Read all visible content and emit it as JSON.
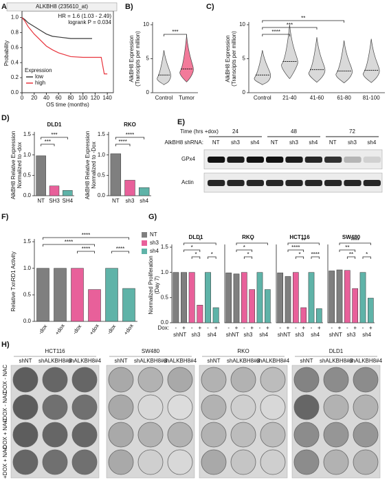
{
  "panel_labels": [
    "A)",
    "B)",
    "C)",
    "D)",
    "E)",
    "F)",
    "G)",
    "H)"
  ],
  "chart_data": [
    {
      "type": "line",
      "title": "ALKBH8 (235610_at)",
      "annotations": [
        "HR = 1.6 (1.03 - 2.49)",
        "logrank P = 0.034"
      ],
      "xlabel": "OS time (months)",
      "ylabel": [
        "Probability"
      ],
      "xlim": [
        0,
        150
      ],
      "xticks": [
        0,
        20,
        40,
        60,
        80,
        100,
        120,
        140
      ],
      "ylim": [
        0,
        1.05
      ],
      "yticks": [
        {
          "value": 0,
          "label": "0.0"
        },
        {
          "value": 0.2,
          "label": "0.2"
        },
        {
          "value": 0.4,
          "label": "0.4"
        },
        {
          "value": 0.6,
          "label": "0.6"
        },
        {
          "value": 0.8,
          "label": "0.8"
        },
        {
          "value": 1,
          "label": "1.0"
        }
      ],
      "legend_title": "Expression",
      "legend": "lower left",
      "series": [
        {
          "name": "low",
          "color": "#3a3a3a",
          "x": [
            0,
            5,
            10,
            20,
            30,
            40,
            50,
            60,
            80,
            100,
            115
          ],
          "values": [
            1,
            0.97,
            0.93,
            0.88,
            0.83,
            0.78,
            0.75,
            0.74,
            0.72,
            0.72,
            0.72
          ]
        },
        {
          "name": "high",
          "color": "#e8333c",
          "x": [
            0,
            5,
            10,
            20,
            30,
            40,
            50,
            60,
            80,
            100,
            130,
            135,
            140
          ],
          "values": [
            1,
            0.95,
            0.88,
            0.78,
            0.7,
            0.62,
            0.57,
            0.53,
            0.48,
            0.47,
            0.47,
            0.25,
            0.25
          ]
        }
      ]
    },
    {
      "type": "violin",
      "ylabel": [
        "AlkBH8 Expression",
        "(Transcipts per million)"
      ],
      "categories": [
        "Control",
        "Tumor"
      ],
      "values": [
        2.6,
        3.5
      ],
      "colors": [
        "#d9d9d9",
        "#f27a9a"
      ],
      "ylim": [
        0,
        10
      ],
      "yticks": [
        0,
        5,
        10
      ],
      "annotations": [
        "***"
      ]
    },
    {
      "type": "violin",
      "ylabel": [
        "AlkBH8 Expression",
        "(Transcipts per million)"
      ],
      "categories": [
        "Control",
        "21-40",
        "41-60",
        "61-80",
        "81-100"
      ],
      "values": [
        2.6,
        4.6,
        3.4,
        3.2,
        3.3
      ],
      "colors": [
        "#d9d9d9",
        "#d9d9d9",
        "#d9d9d9",
        "#d9d9d9",
        "#d9d9d9"
      ],
      "ylim": [
        0,
        10
      ],
      "yticks": [
        0,
        5,
        10
      ],
      "annotations": [
        "****",
        "***",
        "**"
      ]
    },
    {
      "type": "bar",
      "title": "DLD1",
      "ylabel": [
        "AlkBH8 Relative Expression",
        "Normalized to -dox"
      ],
      "categories": [
        "NT",
        "SH3",
        "SH4"
      ],
      "values": [
        0.98,
        0.24,
        0.13
      ],
      "colors": [
        "#7f7f7f",
        "#e8609a",
        "#5fb3a8"
      ],
      "ylim": [
        0,
        1.5
      ],
      "yticks": [
        {
          "value": 0,
          "label": "0.0"
        },
        {
          "value": 0.5,
          "label": "0.5"
        },
        {
          "value": 1,
          "label": "1.0"
        },
        {
          "value": 1.5,
          "label": "1.5"
        }
      ],
      "annotations": [
        "***",
        "***"
      ]
    },
    {
      "type": "bar",
      "title": "RKO",
      "ylabel": [
        "AlkBH8 Relative Expression",
        "Normalized to -Dox"
      ],
      "categories": [
        "NT",
        "sh3",
        "sh4"
      ],
      "values": [
        1.03,
        0.38,
        0.2
      ],
      "colors": [
        "#7f7f7f",
        "#e8609a",
        "#5fb3a8"
      ],
      "ylim": [
        0,
        1.5
      ],
      "yticks": [
        {
          "value": 0,
          "label": "0.0"
        },
        {
          "value": 0.5,
          "label": "0.5"
        },
        {
          "value": 1,
          "label": "1.0"
        },
        {
          "value": 1.5,
          "label": "1.5"
        }
      ],
      "annotations": [
        "****",
        "****"
      ]
    },
    {
      "type": "bar",
      "ylabel": [
        "Relative TxnRD1 Activity"
      ],
      "categories": [
        "-dox",
        "+dox",
        "-dox",
        "+dox",
        "-dox",
        "+dox"
      ],
      "series": [
        {
          "name": "NT",
          "color": "#7f7f7f",
          "values": [
            1,
            1,
            null,
            null,
            null,
            null
          ]
        },
        {
          "name": "sh3",
          "color": "#e8609a",
          "values": [
            null,
            null,
            1,
            0.6,
            null,
            null
          ]
        },
        {
          "name": "sh4",
          "color": "#5fb3a8",
          "values": [
            null,
            null,
            null,
            null,
            1,
            0.62
          ]
        }
      ],
      "legend": "upper right",
      "ylim": [
        0,
        1.5
      ],
      "yticks": [
        {
          "value": 0,
          "label": "0.0"
        },
        {
          "value": 0.5,
          "label": "0.5"
        },
        {
          "value": 1,
          "label": "1.0"
        },
        {
          "value": 1.5,
          "label": "1.5"
        }
      ],
      "annotations": [
        "****",
        "****",
        "****",
        "****"
      ]
    },
    {
      "type": "bar",
      "title": "DLD1",
      "ylabel": [
        "Normalized Proliferation",
        "(Day 7)"
      ],
      "dox_label": "Dox:",
      "categories": [
        "-",
        "+",
        "-",
        "+",
        "-",
        "+"
      ],
      "groups": [
        "shNT",
        "sh3",
        "sh4"
      ],
      "values": [
        1,
        1,
        1,
        0.35,
        1,
        0.3
      ],
      "colors": [
        "#7f7f7f",
        "#7f7f7f",
        "#e8609a",
        "#e8609a",
        "#5fb3a8",
        "#5fb3a8"
      ],
      "ylim": [
        0,
        1.5
      ],
      "yticks": [
        {
          "value": 0,
          "label": "0.0"
        },
        {
          "value": 0.5,
          "label": "0.5"
        },
        {
          "value": 1,
          "label": "1.0"
        },
        {
          "value": 1.5,
          "label": "1.5"
        }
      ],
      "annotations": [
        "*",
        "*",
        "*",
        "*"
      ]
    },
    {
      "type": "bar",
      "title": "RKO",
      "categories": [
        "-",
        "+",
        "-",
        "+",
        "-",
        "+"
      ],
      "groups": [
        "shNT",
        "sh3",
        "sh4"
      ],
      "values": [
        0.99,
        0.97,
        1,
        0.66,
        1,
        0.66
      ],
      "colors": [
        "#7f7f7f",
        "#7f7f7f",
        "#e8609a",
        "#e8609a",
        "#5fb3a8",
        "#5fb3a8"
      ],
      "ylim": [
        0,
        1.5
      ],
      "annotations": [
        "*",
        "*",
        "*"
      ]
    },
    {
      "type": "bar",
      "title": "HCT116",
      "categories": [
        "-",
        "+",
        "-",
        "+",
        "-",
        "+"
      ],
      "groups": [
        "shNT",
        "sh3",
        "sh4"
      ],
      "values": [
        0.99,
        0.92,
        1,
        0.3,
        1,
        0.28
      ],
      "colors": [
        "#7f7f7f",
        "#7f7f7f",
        "#e8609a",
        "#e8609a",
        "#5fb3a8",
        "#5fb3a8"
      ],
      "ylim": [
        0,
        1.5
      ],
      "annotations": [
        "**",
        "****",
        "*",
        "****"
      ]
    },
    {
      "type": "bar",
      "title": "SW480",
      "categories": [
        "-",
        "+",
        "-",
        "+",
        "-",
        "+"
      ],
      "groups": [
        "shNT",
        "sh3",
        "sh4"
      ],
      "values": [
        1.03,
        1.05,
        1.04,
        0.68,
        1,
        0.49
      ],
      "colors": [
        "#7f7f7f",
        "#7f7f7f",
        "#e8609a",
        "#e8609a",
        "#5fb3a8",
        "#5fb3a8"
      ],
      "ylim": [
        0,
        1.5
      ],
      "annotations": [
        "****",
        "**",
        "**",
        "*"
      ]
    }
  ],
  "blot": {
    "time_label": "Time (hrs +dox)",
    "times": [
      "24",
      "48",
      "72"
    ],
    "shrna_label": "AlkBH8 shRNA:",
    "lanes": [
      "NT",
      "sh3",
      "sh4",
      "NT",
      "sh3",
      "sh4",
      "NT",
      "sh3",
      "sh4"
    ],
    "rows": [
      "GPx4",
      "Actin"
    ]
  },
  "colony": {
    "panels": [
      {
        "title": "HCT116",
        "columns": [
          "shNT",
          "shALKBH8#3",
          "shALKBH8#4"
        ]
      },
      {
        "title": "SW480",
        "columns": [
          "shNT",
          "shALKBH8#3",
          "shALKBH8#4"
        ]
      },
      {
        "title": "RKO",
        "columns": [
          "shNT",
          "shALKBH8#3",
          "shALKBH8#4"
        ]
      },
      {
        "title": "DLD1",
        "columns": [
          "shNT",
          "shALKBH8#3",
          "shALKBH8#4"
        ]
      }
    ],
    "row_labels": [
      "-DOX - NAC",
      "+DOX - NAC",
      "-DOX + NAC",
      "+DOX + NAC"
    ]
  }
}
